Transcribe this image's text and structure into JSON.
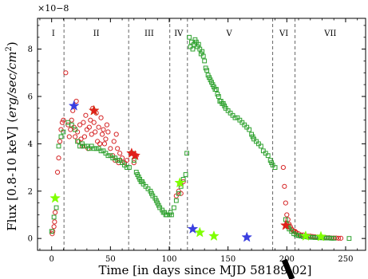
{
  "chart_data": {
    "type": "scatter",
    "xlabel": "Time [in days since MJD 58189.02]",
    "ylabel": "Flux [0.8-10 keV] (erg/sec/cm²)",
    "y_multiplier": "×10−8",
    "xlim": [
      -12,
      267
    ],
    "ylim": [
      -0.5,
      9.3
    ],
    "x_ticks": [
      "0",
      "50",
      "100",
      "150",
      "200",
      "250"
    ],
    "y_ticks": [
      "0",
      "2",
      "4",
      "6",
      "8"
    ],
    "grid": false,
    "phase_boundaries": [
      10.5,
      65.5,
      100.5,
      115.5,
      188,
      207
    ],
    "phase_labels": [
      {
        "label": "I",
        "x": 1.5
      },
      {
        "label": "II",
        "x": 38
      },
      {
        "label": "III",
        "x": 83
      },
      {
        "label": "IV",
        "x": 108
      },
      {
        "label": "V",
        "x": 151
      },
      {
        "label": "VI",
        "x": 197.5
      },
      {
        "label": "VII",
        "x": 237
      }
    ],
    "colors": {
      "circle": "#d62728",
      "square": "#2ca02c"
    },
    "series": [
      {
        "marker": "circle",
        "points": [
          [
            0.5,
            0.2
          ],
          [
            1,
            0.3
          ],
          [
            2,
            0.5
          ],
          [
            2.5,
            0.7
          ],
          [
            3,
            1.1
          ],
          [
            5,
            2.8
          ],
          [
            6,
            3.4
          ],
          [
            7,
            4.1
          ],
          [
            8,
            4.6
          ],
          [
            9,
            4.9
          ],
          [
            10,
            5.0
          ],
          [
            12,
            7.0
          ],
          [
            14,
            4.8
          ],
          [
            15,
            4.3
          ],
          [
            16,
            4.6
          ],
          [
            17,
            5.0
          ],
          [
            18,
            5.4
          ],
          [
            19,
            4.7
          ],
          [
            20,
            4.3
          ],
          [
            21,
            5.8
          ],
          [
            22,
            4.5
          ],
          [
            23,
            4.1
          ],
          [
            24,
            4.8
          ],
          [
            25,
            4.2
          ],
          [
            26,
            3.9
          ],
          [
            27,
            4.9
          ],
          [
            28,
            4.3
          ],
          [
            29,
            5.2
          ],
          [
            30,
            4.6
          ],
          [
            31,
            3.8
          ],
          [
            32,
            4.7
          ],
          [
            33,
            5.0
          ],
          [
            34,
            4.4
          ],
          [
            35,
            5.5
          ],
          [
            36,
            4.9
          ],
          [
            37,
            4.5
          ],
          [
            38,
            5.3
          ],
          [
            39,
            4.1
          ],
          [
            40,
            4.7
          ],
          [
            41,
            4.0
          ],
          [
            42,
            5.1
          ],
          [
            43,
            4.4
          ],
          [
            44,
            4.6
          ],
          [
            45,
            4.0
          ],
          [
            46,
            4.2
          ],
          [
            47,
            4.8
          ],
          [
            48,
            4.5
          ],
          [
            50,
            3.8
          ],
          [
            52,
            3.5
          ],
          [
            53,
            4.1
          ],
          [
            54,
            3.3
          ],
          [
            55,
            4.4
          ],
          [
            56,
            3.8
          ],
          [
            57,
            3.2
          ],
          [
            58,
            3.6
          ],
          [
            60,
            3.4
          ],
          [
            62,
            3.2
          ],
          [
            64,
            3.3
          ],
          [
            68,
            3.6
          ],
          [
            70,
            3.2
          ],
          [
            72,
            3.5
          ],
          [
            106,
            1.8
          ],
          [
            108,
            2.0
          ],
          [
            109,
            2.3
          ],
          [
            110,
            1.9
          ],
          [
            112,
            2.4
          ],
          [
            197,
            3.0
          ],
          [
            198,
            2.2
          ],
          [
            199,
            1.5
          ],
          [
            200,
            1.0
          ],
          [
            201,
            0.8
          ],
          [
            202,
            0.6
          ],
          [
            203,
            0.5
          ],
          [
            204,
            0.4
          ],
          [
            205,
            0.35
          ],
          [
            206,
            0.3
          ],
          [
            207,
            0.3
          ],
          [
            208,
            0.25
          ],
          [
            210,
            0.2
          ],
          [
            212,
            0.15
          ],
          [
            214,
            0.15
          ],
          [
            216,
            0.1
          ],
          [
            218,
            0.1
          ],
          [
            220,
            0.1
          ],
          [
            222,
            0.08
          ],
          [
            224,
            0.07
          ],
          [
            226,
            0.06
          ],
          [
            228,
            0.05
          ],
          [
            230,
            0.05
          ],
          [
            232,
            0.04
          ],
          [
            234,
            0.03
          ],
          [
            236,
            0.03
          ],
          [
            238,
            0.02
          ],
          [
            240,
            0.02
          ],
          [
            242,
            0.02
          ],
          [
            244,
            0.01
          ],
          [
            246,
            0.01
          ]
        ]
      },
      {
        "marker": "square",
        "points": [
          [
            0,
            0.3
          ],
          [
            2,
            0.9
          ],
          [
            4,
            1.3
          ],
          [
            6,
            3.9
          ],
          [
            8,
            4.3
          ],
          [
            10,
            4.5
          ],
          [
            14,
            4.9
          ],
          [
            17,
            4.8
          ],
          [
            20,
            4.6
          ],
          [
            22,
            4.1
          ],
          [
            24,
            3.9
          ],
          [
            26,
            4.0
          ],
          [
            28,
            3.9
          ],
          [
            30,
            3.9
          ],
          [
            32,
            3.8
          ],
          [
            34,
            3.9
          ],
          [
            36,
            3.8
          ],
          [
            38,
            3.8
          ],
          [
            40,
            3.8
          ],
          [
            42,
            3.7
          ],
          [
            44,
            3.7
          ],
          [
            46,
            3.6
          ],
          [
            48,
            3.5
          ],
          [
            50,
            3.5
          ],
          [
            52,
            3.4
          ],
          [
            54,
            3.4
          ],
          [
            56,
            3.3
          ],
          [
            58,
            3.3
          ],
          [
            60,
            3.2
          ],
          [
            62,
            3.1
          ],
          [
            64,
            3.0
          ],
          [
            66,
            3.0
          ],
          [
            68,
            3.6
          ],
          [
            70,
            3.3
          ],
          [
            72,
            2.8
          ],
          [
            73,
            2.7
          ],
          [
            74,
            2.6
          ],
          [
            75,
            2.5
          ],
          [
            76,
            2.4
          ],
          [
            77,
            2.4
          ],
          [
            78,
            2.3
          ],
          [
            80,
            2.2
          ],
          [
            82,
            2.1
          ],
          [
            84,
            2.0
          ],
          [
            85,
            1.9
          ],
          [
            86,
            1.8
          ],
          [
            88,
            1.7
          ],
          [
            89,
            1.6
          ],
          [
            90,
            1.5
          ],
          [
            91,
            1.4
          ],
          [
            92,
            1.3
          ],
          [
            94,
            1.2
          ],
          [
            95,
            1.1
          ],
          [
            96,
            1.1
          ],
          [
            97,
            1.0
          ],
          [
            98,
            1.0
          ],
          [
            100,
            1.0
          ],
          [
            101,
            1.1
          ],
          [
            102,
            1.0
          ],
          [
            104,
            1.3
          ],
          [
            106,
            1.6
          ],
          [
            108,
            1.9
          ],
          [
            110,
            2.2
          ],
          [
            112,
            2.5
          ],
          [
            114,
            2.7
          ],
          [
            115,
            3.6
          ],
          [
            117,
            8.5
          ],
          [
            118,
            8.1
          ],
          [
            119,
            8.3
          ],
          [
            120,
            8.0
          ],
          [
            121,
            8.2
          ],
          [
            122,
            8.4
          ],
          [
            123,
            8.3
          ],
          [
            124,
            8.1
          ],
          [
            125,
            8.2
          ],
          [
            126,
            8.0
          ],
          [
            127,
            7.8
          ],
          [
            128,
            7.9
          ],
          [
            129,
            7.7
          ],
          [
            130,
            7.5
          ],
          [
            131,
            7.2
          ],
          [
            132,
            7.1
          ],
          [
            133,
            6.9
          ],
          [
            134,
            6.8
          ],
          [
            135,
            6.7
          ],
          [
            136,
            6.6
          ],
          [
            137,
            6.5
          ],
          [
            138,
            6.4
          ],
          [
            139,
            6.3
          ],
          [
            140,
            6.3
          ],
          [
            141,
            6.1
          ],
          [
            142,
            6.0
          ],
          [
            143,
            5.8
          ],
          [
            144,
            5.8
          ],
          [
            145,
            5.7
          ],
          [
            146,
            5.7
          ],
          [
            147,
            5.6
          ],
          [
            148,
            5.5
          ],
          [
            150,
            5.4
          ],
          [
            152,
            5.3
          ],
          [
            154,
            5.2
          ],
          [
            156,
            5.1
          ],
          [
            158,
            5.1
          ],
          [
            160,
            5.0
          ],
          [
            162,
            4.9
          ],
          [
            164,
            4.8
          ],
          [
            166,
            4.7
          ],
          [
            168,
            4.6
          ],
          [
            170,
            4.4
          ],
          [
            171,
            4.3
          ],
          [
            172,
            4.2
          ],
          [
            174,
            4.1
          ],
          [
            176,
            4.0
          ],
          [
            178,
            3.9
          ],
          [
            180,
            3.7
          ],
          [
            182,
            3.6
          ],
          [
            184,
            3.5
          ],
          [
            186,
            3.3
          ],
          [
            187,
            3.2
          ],
          [
            188,
            3.1
          ],
          [
            190,
            3.0
          ],
          [
            199,
            0.8
          ],
          [
            200,
            0.6
          ],
          [
            201,
            0.5
          ],
          [
            202,
            0.4
          ],
          [
            204,
            0.3
          ],
          [
            206,
            0.2
          ],
          [
            208,
            0.15
          ],
          [
            210,
            0.12
          ],
          [
            212,
            0.1
          ],
          [
            214,
            0.08
          ],
          [
            216,
            0.07
          ],
          [
            218,
            0.06
          ],
          [
            220,
            0.05
          ],
          [
            222,
            0.05
          ],
          [
            224,
            0.04
          ],
          [
            226,
            0.04
          ],
          [
            228,
            0.03
          ],
          [
            230,
            0.03
          ],
          [
            232,
            0.02
          ],
          [
            234,
            0.02
          ],
          [
            236,
            0.02
          ],
          [
            238,
            0.01
          ],
          [
            240,
            0.01
          ],
          [
            253,
            0.0
          ]
        ]
      },
      {
        "marker": "star",
        "points": [
          {
            "x": 19,
            "y": 5.6,
            "color": "#3a3fe0"
          },
          {
            "x": 36,
            "y": 5.4,
            "color": "#7fff00"
          },
          {
            "x": 36,
            "y": 5.4,
            "color": "#e0201a"
          },
          {
            "x": 68,
            "y": 3.6,
            "color": "#e0201a"
          },
          {
            "x": 71,
            "y": 3.5,
            "color": "#e0201a"
          },
          {
            "x": 109,
            "y": 2.35,
            "color": "#7fff00"
          },
          {
            "x": 3,
            "y": 1.7,
            "color": "#7fff00"
          },
          {
            "x": 120,
            "y": 0.4,
            "color": "#3a3fe0"
          },
          {
            "x": 126,
            "y": 0.25,
            "color": "#7fff00"
          },
          {
            "x": 138,
            "y": 0.1,
            "color": "#7fff00"
          },
          {
            "x": 166,
            "y": 0.05,
            "color": "#3a3fe0"
          },
          {
            "x": 199,
            "y": 0.55,
            "color": "#e0201a"
          },
          {
            "x": 216,
            "y": 0.1,
            "color": "#7fff00"
          },
          {
            "x": 229,
            "y": 0.08,
            "color": "#7fff00"
          }
        ]
      }
    ]
  }
}
